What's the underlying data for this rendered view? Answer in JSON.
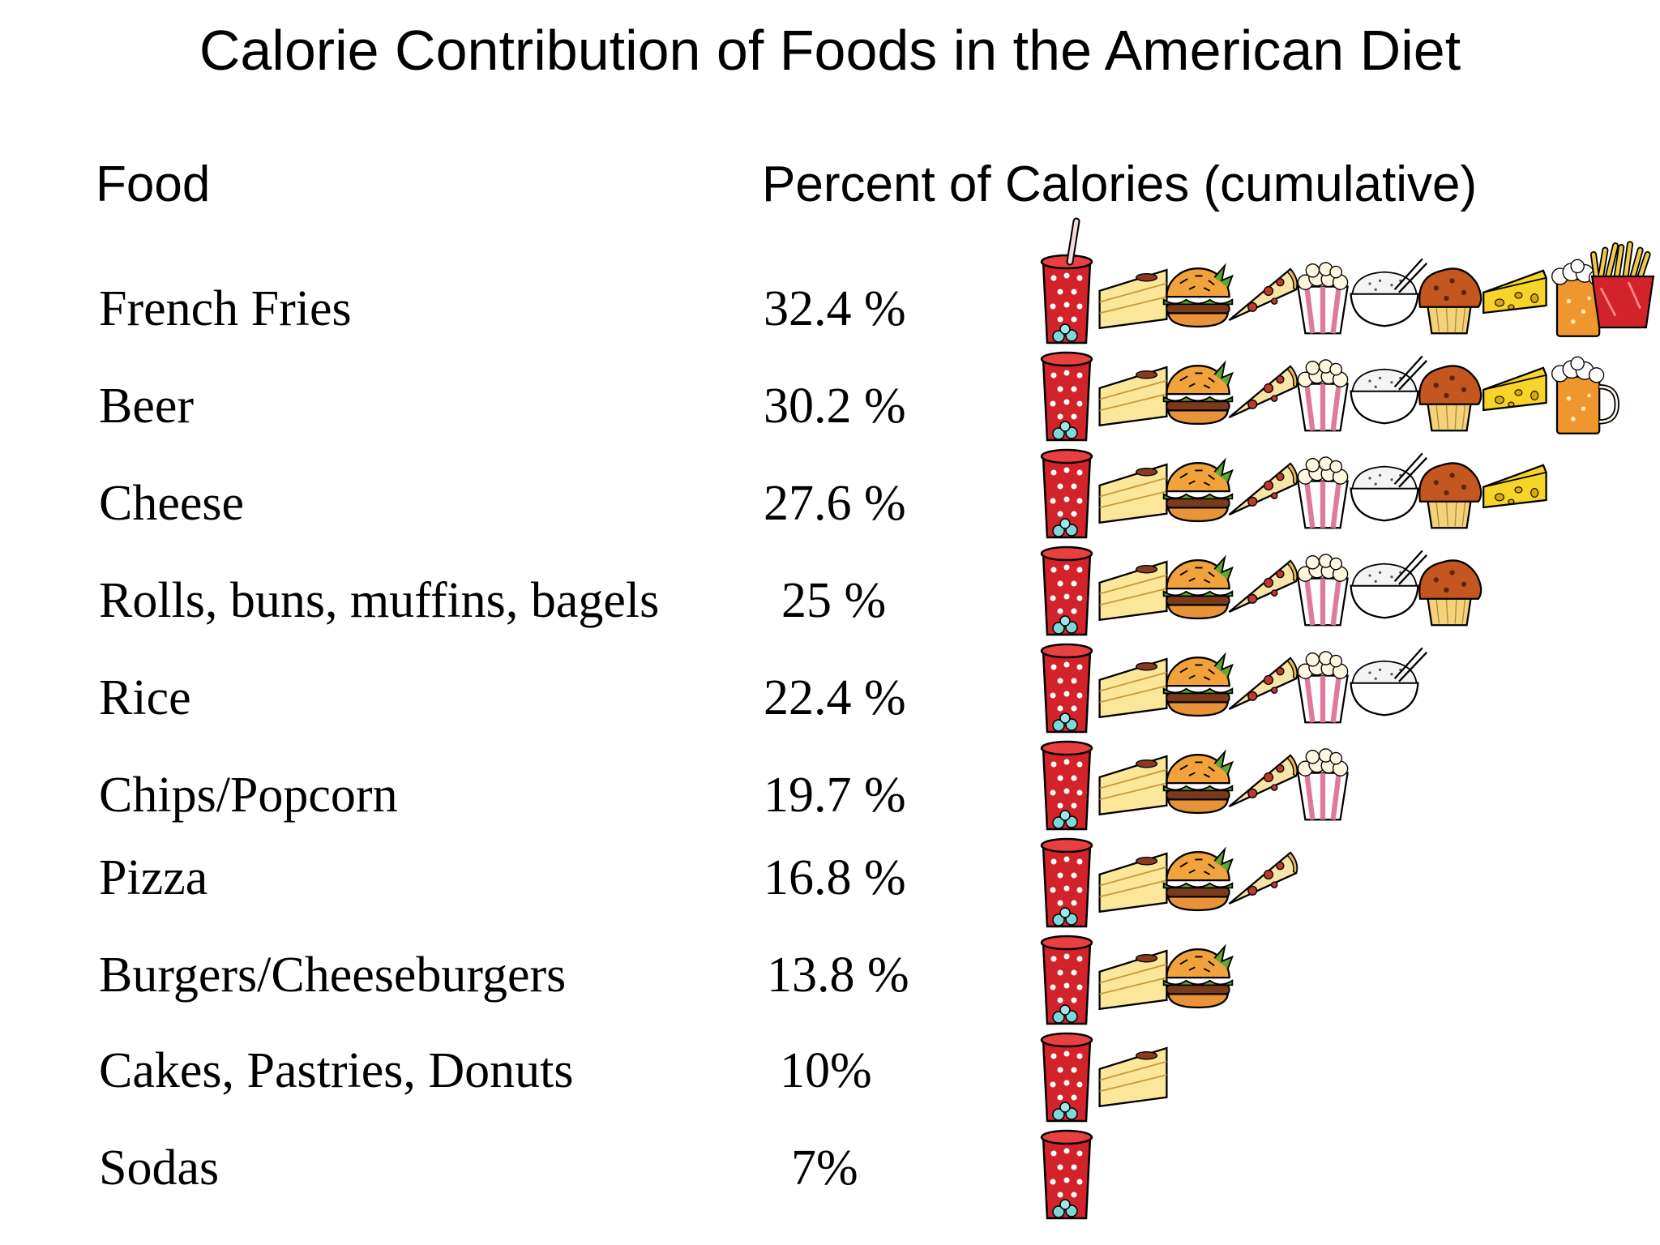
{
  "chart_data": {
    "type": "table",
    "title": "Calorie Contribution of Foods in the American Diet",
    "columns": [
      "Food",
      "Percent of Calories (cumulative)"
    ],
    "rows": [
      {
        "food": "French Fries",
        "percent": "32.4 %",
        "value": 32.4
      },
      {
        "food": "Beer",
        "percent": "30.2 %",
        "value": 30.2
      },
      {
        "food": "Cheese",
        "percent": "27.6 %",
        "value": 27.6
      },
      {
        "food": "Rolls, buns, muffins, bagels",
        "percent": "25 %",
        "value": 25
      },
      {
        "food": "Rice",
        "percent": "22.4 %",
        "value": 22.4
      },
      {
        "food": "Chips/Popcorn",
        "percent": "19.7 %",
        "value": 19.7
      },
      {
        "food": "Pizza",
        "percent": "16.8 %",
        "value": 16.8
      },
      {
        "food": "Burgers/Cheeseburgers",
        "percent": "13.8 %",
        "value": 13.8
      },
      {
        "food": "Cakes, Pastries, Donuts",
        "percent": "10%",
        "value": 10
      },
      {
        "food": "Sodas",
        "percent": "7%",
        "value": 7
      }
    ],
    "pictogram_icon_order": [
      "soda-icon",
      "cake-icon",
      "burger-icon",
      "pizza-icon",
      "popcorn-icon",
      "rice-icon",
      "muffin-icon",
      "cheese-icon",
      "beer-icon",
      "fries-icon"
    ]
  }
}
